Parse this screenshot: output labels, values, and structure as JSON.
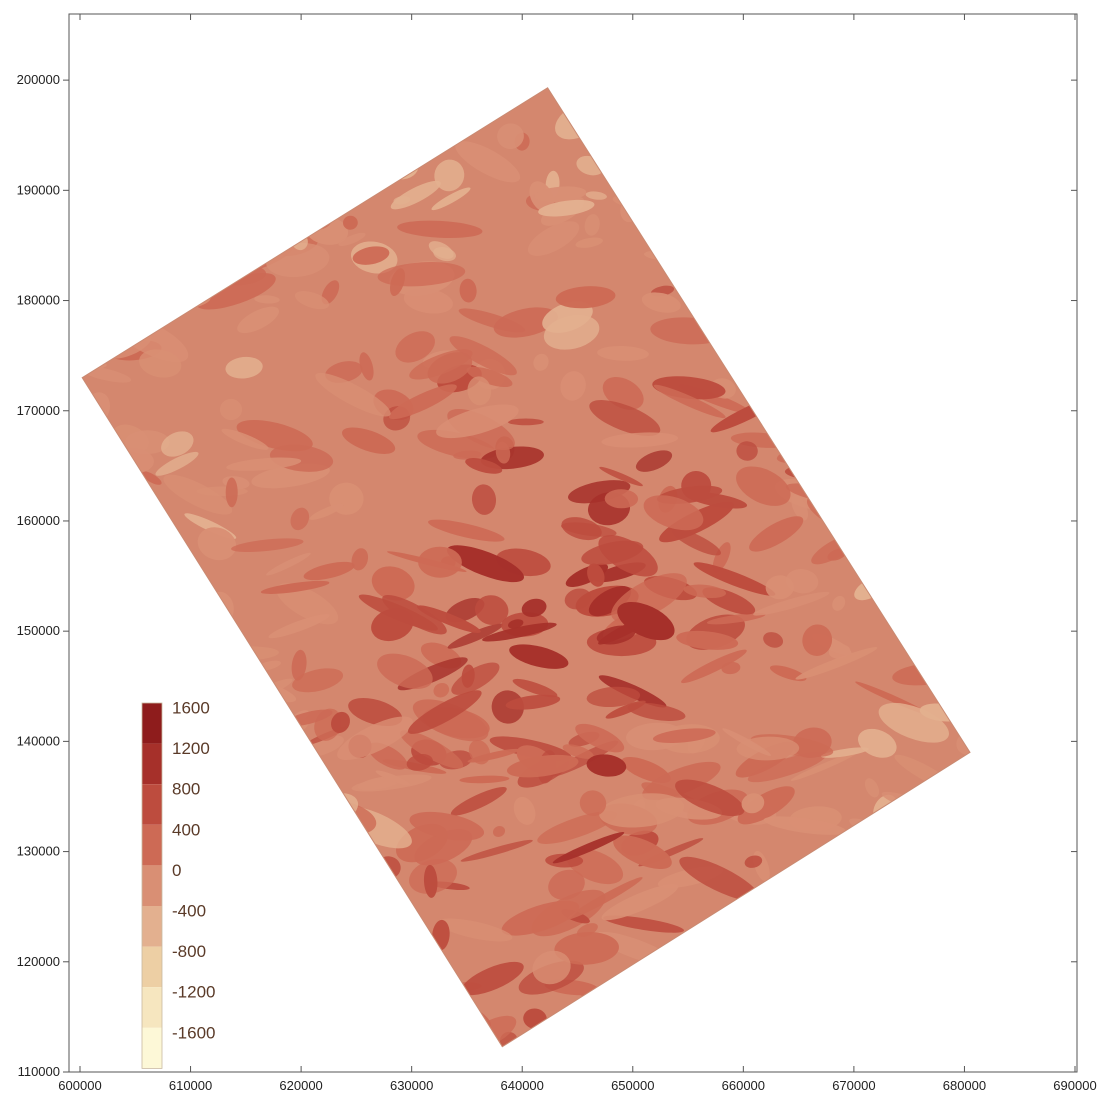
{
  "map": {
    "x_axis": {
      "range": [
        600000,
        690000
      ],
      "ticks": [
        "600000",
        "610000",
        "620000",
        "630000",
        "640000",
        "650000",
        "660000",
        "670000",
        "680000",
        "690000"
      ]
    },
    "y_axis": {
      "range": [
        110000,
        206000
      ],
      "ticks": [
        "110000",
        "120000",
        "130000",
        "140000",
        "150000",
        "160000",
        "170000",
        "180000",
        "190000",
        "200000"
      ]
    },
    "survey_area_corners": [
      [
        642300,
        199300
      ],
      [
        680500,
        139000
      ],
      [
        638200,
        112300
      ],
      [
        600200,
        173000
      ]
    ],
    "colors": {
      "background": "#ffffff",
      "axis": "#555555",
      "base_fill": "#d4876e"
    }
  },
  "legend": {
    "labels": [
      "1600",
      "1200",
      "800",
      "400",
      "0",
      "-400",
      "-800",
      "-1200",
      "-1600"
    ],
    "colors": [
      "#8e1c1c",
      "#a6302a",
      "#bd4c3e",
      "#cd6a55",
      "#d98f74",
      "#e3b08f",
      "#edcfa4",
      "#f6e6bf",
      "#fdf8d7"
    ]
  }
}
